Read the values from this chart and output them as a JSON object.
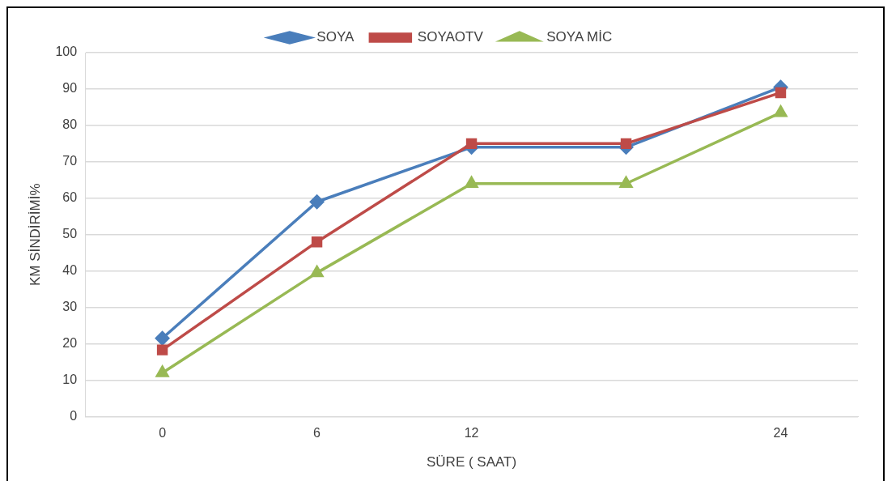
{
  "chart_data": {
    "type": "line",
    "xlabel": "SÜRE ( SAAT)",
    "ylabel": "KM SİNDİRİMİ%",
    "categories": [
      "0",
      "6",
      "12",
      null,
      "24"
    ],
    "series": [
      {
        "name": "SOYA",
        "color": "#4a7ebb",
        "marker": "diamond",
        "values": [
          21.5,
          59,
          74,
          74,
          90.5
        ]
      },
      {
        "name": "SOYAOTV",
        "color": "#be4b48",
        "marker": "square",
        "values": [
          18.3,
          48,
          75,
          75,
          89
        ]
      },
      {
        "name": "SOYA MİC",
        "color": "#98b954",
        "marker": "triangle",
        "values": [
          12,
          39.5,
          64,
          64,
          83.5
        ]
      }
    ],
    "ylim": [
      0,
      100
    ],
    "yticks": [
      0,
      10,
      20,
      30,
      40,
      50,
      60,
      70,
      80,
      90,
      100
    ],
    "grid": "y",
    "legend": "top"
  }
}
